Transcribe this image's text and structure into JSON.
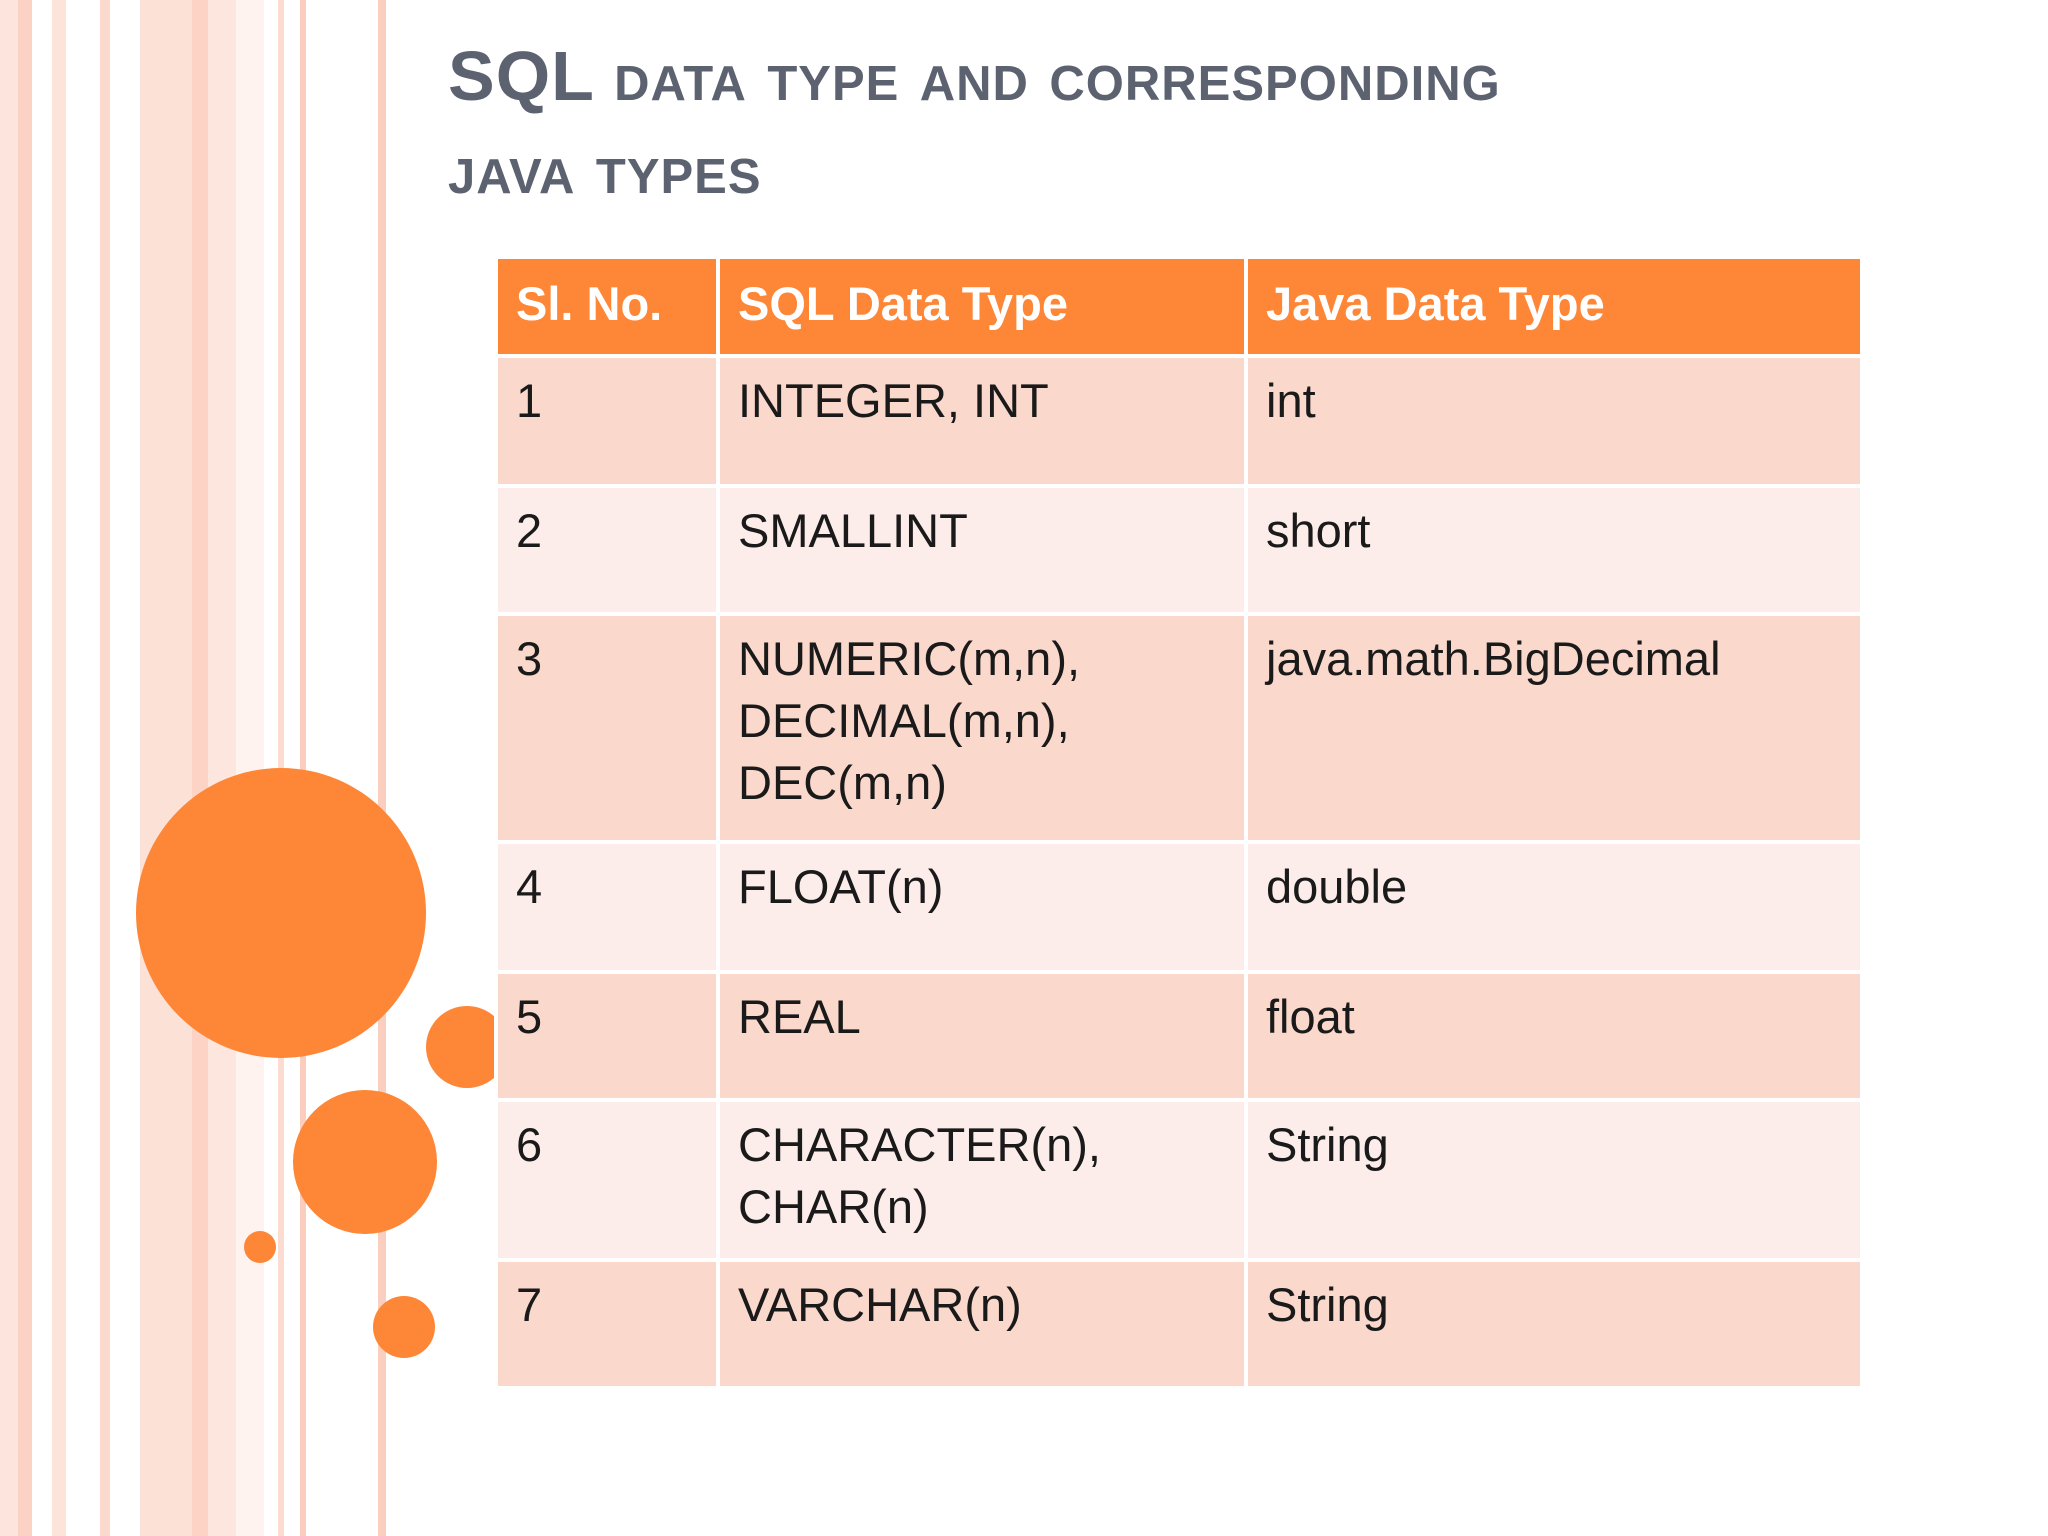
{
  "title": {
    "line1": "SQL data type and corresponding",
    "line2": "java types"
  },
  "table": {
    "headers": [
      "Sl. No.",
      "SQL Data Type",
      "Java Data Type"
    ],
    "rows": [
      {
        "no": "1",
        "sql": "INTEGER, INT",
        "java": "int"
      },
      {
        "no": "2",
        "sql": "SMALLINT",
        "java": "short"
      },
      {
        "no": "3",
        "sql": "NUMERIC(m,n),\nDECIMAL(m,n),\nDEC(m,n)",
        "java": "java.math.BigDecimal"
      },
      {
        "no": "4",
        "sql": "FLOAT(n)",
        "java": "double"
      },
      {
        "no": "5",
        "sql": "REAL",
        "java": "float"
      },
      {
        "no": "6",
        "sql": "CHARACTER(n),\nCHAR(n)",
        "java": "String"
      },
      {
        "no": "7",
        "sql": "VARCHAR(n)",
        "java": "String"
      }
    ]
  },
  "colors": {
    "accent": "#fd8637",
    "title": "#5d6270",
    "row_dark": "#fbd8cc",
    "row_light": "#fdedea"
  }
}
